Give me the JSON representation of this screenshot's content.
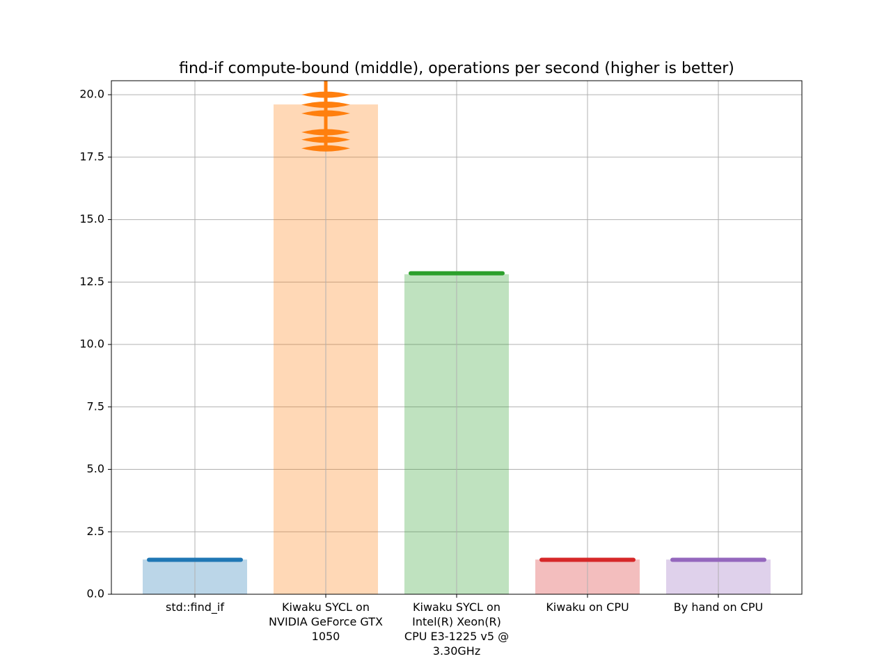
{
  "chart_data": {
    "type": "bar",
    "title": "find-if compute-bound (middle), operations per second (higher is better)",
    "categories": [
      "std::find_if",
      "Kiwaku SYCL on\nNVIDIA GeForce GTX\n1050",
      "Kiwaku SYCL on\nIntel(R) Xeon(R)\nCPU E3-1225 v5 @\n3.30GHz",
      "Kiwaku on CPU",
      "By hand on CPU"
    ],
    "values": [
      1.39,
      19.61,
      12.81,
      1.39,
      1.39
    ],
    "colors": [
      "#1f77b4",
      "#ff7f0e",
      "#2ca02c",
      "#d62728",
      "#9467bd"
    ],
    "violins": [
      [
        1.38
      ],
      [
        17.85,
        18.2,
        18.5,
        19.25,
        19.6,
        20.0,
        20.9
      ],
      [
        12.85
      ],
      [
        1.38
      ],
      [
        1.38
      ]
    ],
    "ylim": [
      0,
      20.56
    ],
    "yticks": [
      {
        "value": 0,
        "label": "0.0"
      },
      2.5,
      {
        "value": 5,
        "label": "5.0"
      },
      7.5,
      {
        "value": 10,
        "label": "10.0"
      },
      12.5,
      {
        "value": 15,
        "label": "15.0"
      },
      17.5,
      {
        "value": 20,
        "label": "20.0"
      }
    ],
    "grid": true
  }
}
